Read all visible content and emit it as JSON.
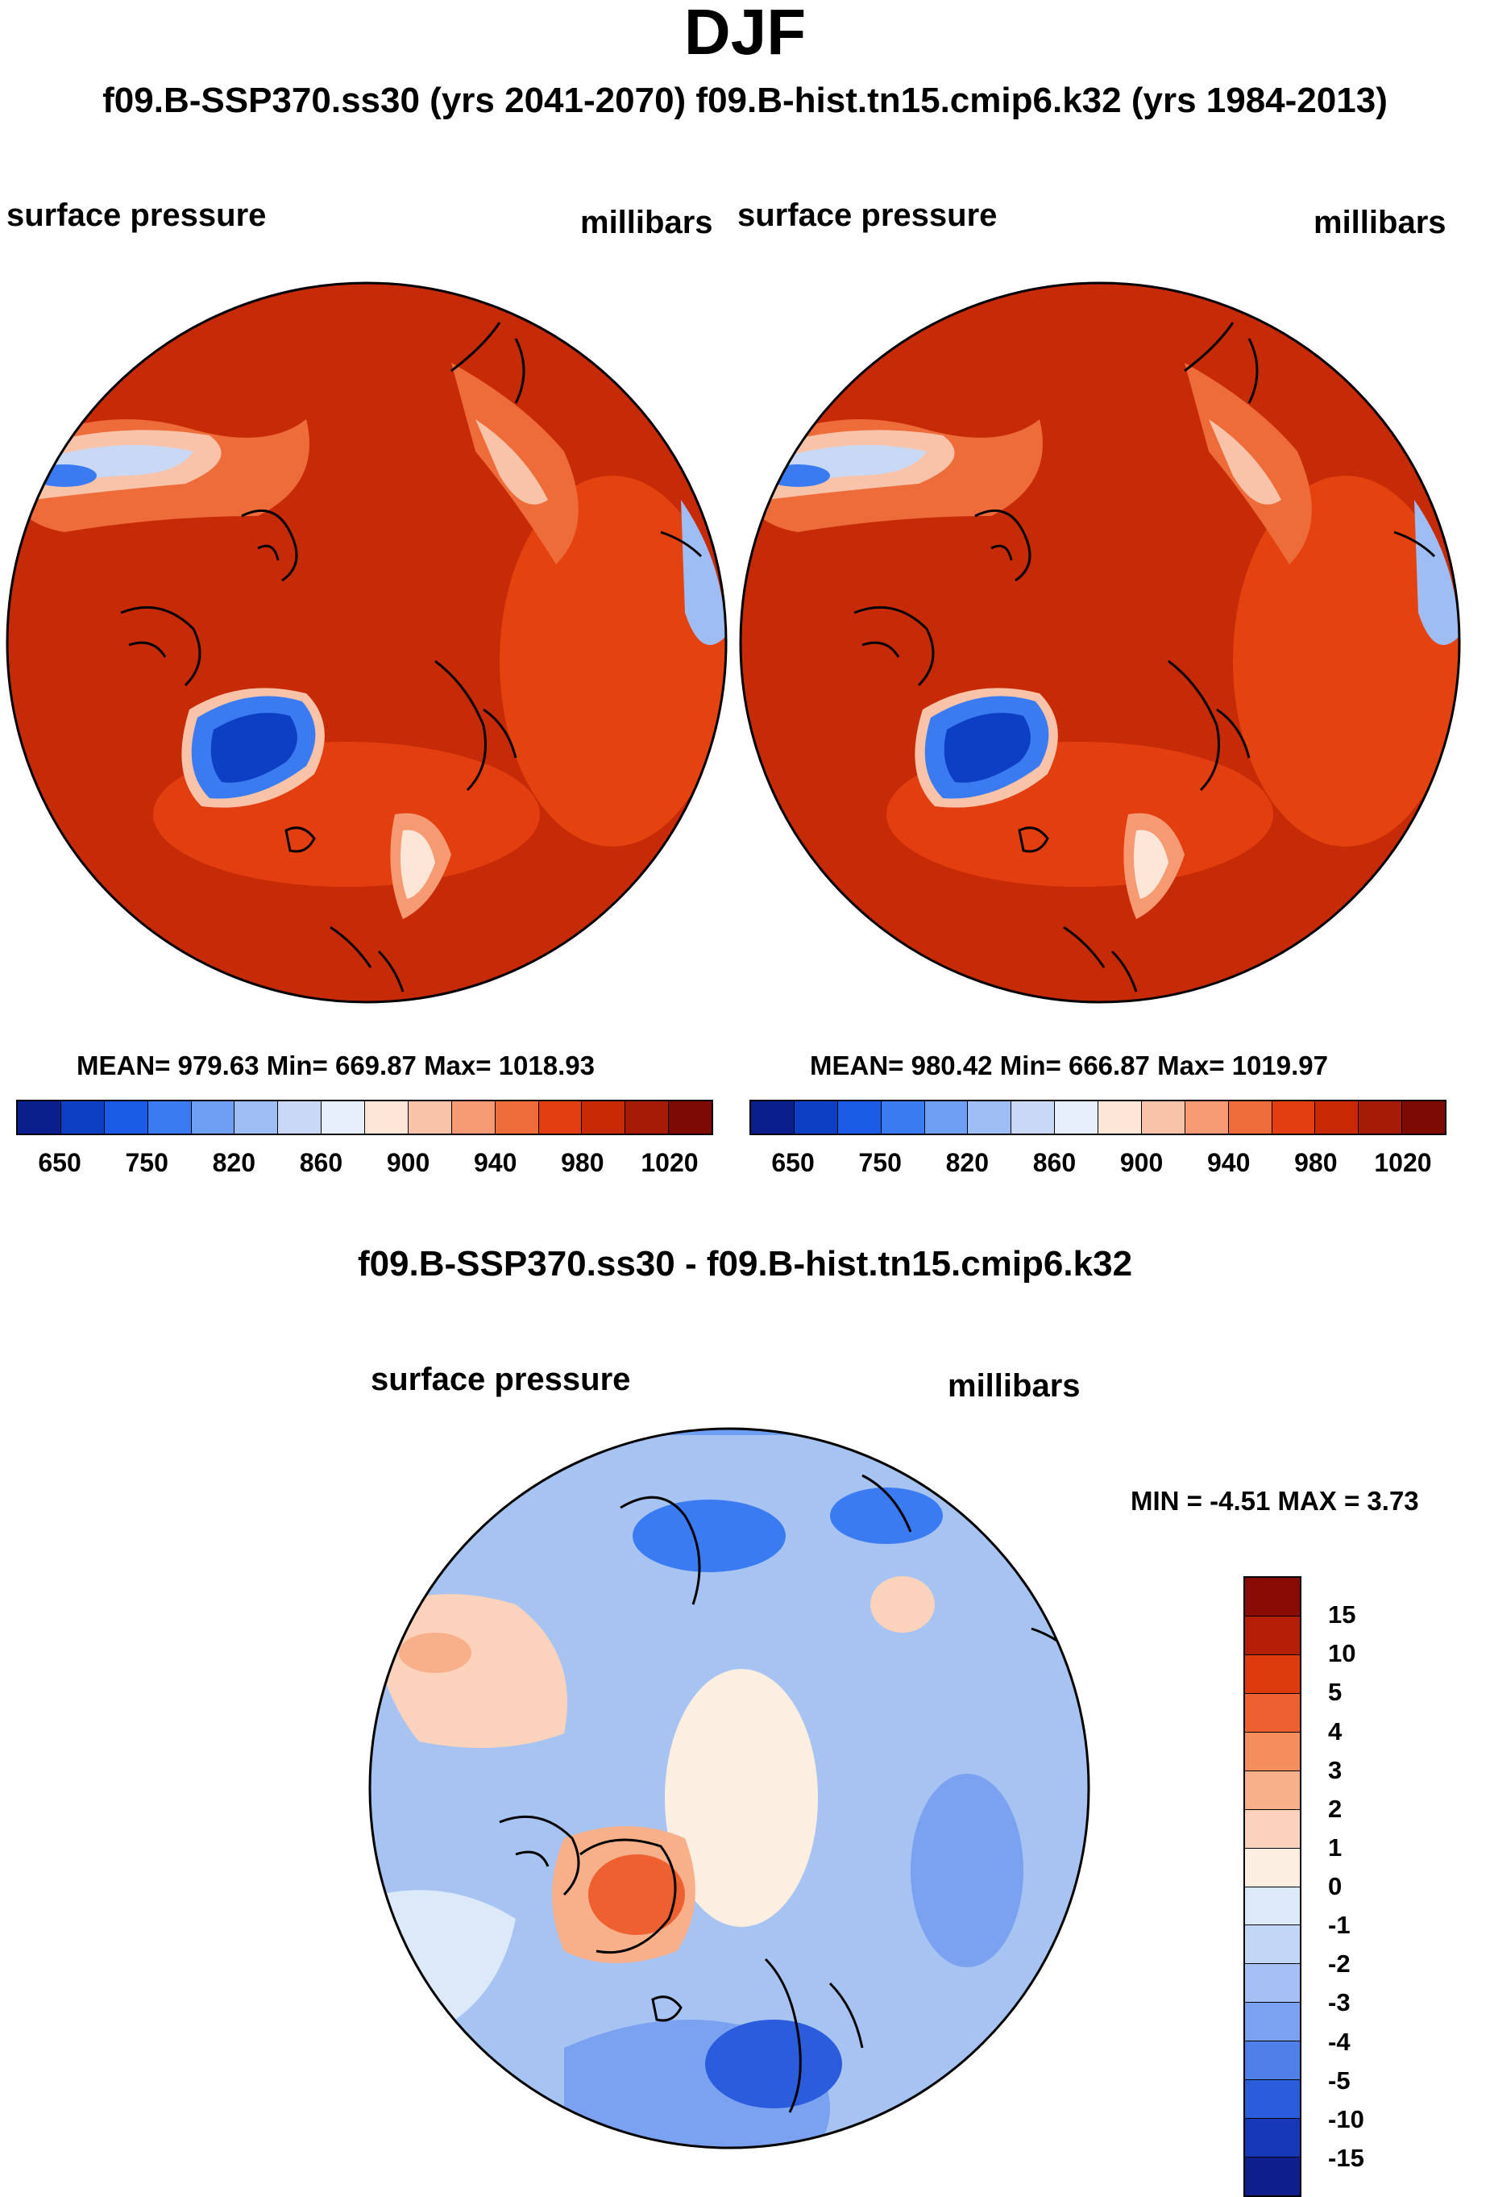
{
  "title": "DJF",
  "subtitle": "f09.B-SSP370.ss30 (yrs 2041-2070)  f09.B-hist.tn15.cmip6.k32 (yrs 1984-2013)",
  "diff_title": "f09.B-SSP370.ss30 - f09.B-hist.tn15.cmip6.k32",
  "chart_data": [
    {
      "type": "heatmap",
      "projection": "north-polar-stereographic",
      "case": "f09.B-SSP370.ss30 (yrs 2041-2070)",
      "left_label": "surface pressure",
      "right_label": "millibars",
      "stats_text": "MEAN= 979.63  Min= 669.87  Max= 1018.93",
      "mean": 979.63,
      "min": 669.87,
      "max": 1018.93,
      "colorbar_ticks": [
        "650",
        "750",
        "820",
        "860",
        "900",
        "940",
        "980",
        "1020"
      ],
      "colorbar_colors": [
        "#0a1f8c",
        "#0d3fc4",
        "#1a5ce6",
        "#3a7bf2",
        "#6e9ff5",
        "#9fbdf5",
        "#c9d9f5",
        "#e6effb",
        "#fbe6d8",
        "#f8c3a8",
        "#f59a72",
        "#ee6b3a",
        "#e33d12",
        "#c82a06",
        "#a51b05",
        "#7d0a03"
      ],
      "color": "#d93b0f"
    },
    {
      "type": "heatmap",
      "projection": "north-polar-stereographic",
      "case": "f09.B-hist.tn15.cmip6.k32 (yrs 1984-2013)",
      "left_label": "surface pressure",
      "right_label": "millibars",
      "stats_text": "MEAN= 980.42  Min= 666.87  Max= 1019.97",
      "mean": 980.42,
      "min": 666.87,
      "max": 1019.97,
      "colorbar_ticks": [
        "650",
        "750",
        "820",
        "860",
        "900",
        "940",
        "980",
        "1020"
      ],
      "colorbar_colors": [
        "#0a1f8c",
        "#0d3fc4",
        "#1a5ce6",
        "#3a7bf2",
        "#6e9ff5",
        "#9fbdf5",
        "#c9d9f5",
        "#e6effb",
        "#fbe6d8",
        "#f8c3a8",
        "#f59a72",
        "#ee6b3a",
        "#e33d12",
        "#c82a06",
        "#a51b05",
        "#7d0a03"
      ],
      "color": "#d93b0f"
    },
    {
      "type": "heatmap",
      "projection": "north-polar-stereographic",
      "case": "f09.B-SSP370.ss30 - f09.B-hist.tn15.cmip6.k32",
      "left_label": "surface pressure",
      "right_label": "millibars",
      "stats_text": "MIN =  -4.51 MAX =   3.73",
      "min": -4.51,
      "max": 3.73,
      "colorbar_ticks": [
        "15",
        "10",
        "5",
        "4",
        "3",
        "2",
        "1",
        "0",
        "-1",
        "-2",
        "-3",
        "-4",
        "-5",
        "-10",
        "-15"
      ],
      "colorbar_colors": [
        "#8a0a05",
        "#b51e07",
        "#dd3a0e",
        "#ee6030",
        "#f58d5c",
        "#f8b08a",
        "#fbd3bd",
        "#fdeee2",
        "#dce9f9",
        "#c2d6f6",
        "#a4c0f4",
        "#7aa2f0",
        "#4f7fe8",
        "#2a5cdc",
        "#1638b8",
        "#0c1f8a"
      ],
      "color": "#a7c3f2"
    }
  ]
}
